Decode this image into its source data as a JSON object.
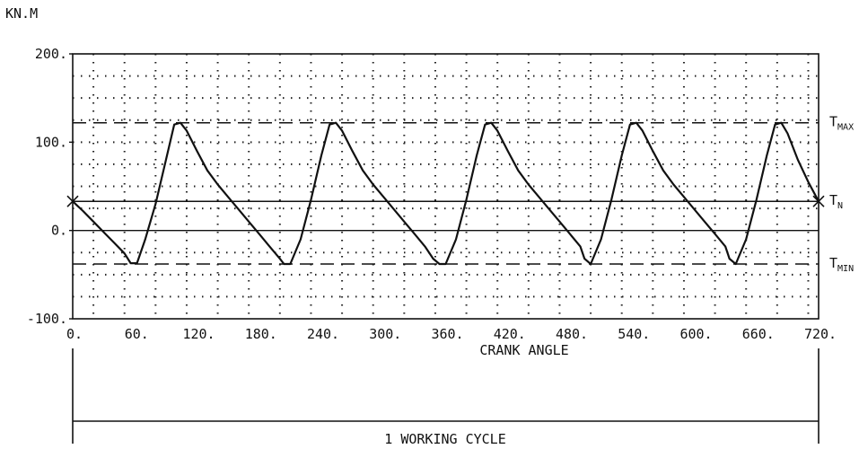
{
  "chart_data": {
    "type": "line",
    "ylabel": "KN.M",
    "xlabel": "CRANK ANGLE",
    "xlim": [
      0,
      720
    ],
    "ylim": [
      -100,
      200
    ],
    "x_ticks": [
      0,
      60,
      120,
      180,
      240,
      300,
      360,
      420,
      480,
      540,
      600,
      660,
      720
    ],
    "x_tick_labels": [
      "0.",
      "60.",
      "120.",
      "180.",
      "240.",
      "300.",
      "360.",
      "420.",
      "480.",
      "540.",
      "600.",
      "660.",
      "720."
    ],
    "y_ticks": [
      -100,
      0,
      100,
      200
    ],
    "y_tick_labels": [
      "-100.",
      "0.",
      "100.",
      "200."
    ],
    "grid": "dotted",
    "series": [
      {
        "x": [
          0,
          10,
          20,
          30,
          40,
          50,
          56,
          62,
          70,
          80,
          90,
          98,
          104,
          110,
          120,
          130,
          140,
          150,
          160,
          170,
          180,
          190,
          200,
          204,
          210,
          220,
          230,
          240,
          248,
          254,
          260,
          270,
          280,
          290,
          300,
          310,
          320,
          330,
          340,
          348,
          354,
          360,
          370,
          380,
          390,
          398,
          404,
          410,
          420,
          430,
          440,
          450,
          460,
          470,
          480,
          490,
          494,
          500,
          510,
          520,
          530,
          538,
          544,
          550,
          560,
          570,
          580,
          590,
          600,
          610,
          620,
          630,
          634,
          640,
          650,
          660,
          670,
          678,
          684,
          690,
          700,
          710,
          720
        ],
        "values": [
          33,
          22,
          10,
          -2,
          -14,
          -26,
          -37,
          -37,
          -10,
          30,
          80,
          120,
          122,
          113,
          90,
          68,
          52,
          38,
          24,
          10,
          -4,
          -18,
          -32,
          -38,
          -38,
          -10,
          35,
          85,
          120,
          122,
          113,
          90,
          68,
          52,
          38,
          24,
          10,
          -4,
          -18,
          -32,
          -38,
          -38,
          -10,
          35,
          85,
          120,
          122,
          113,
          90,
          68,
          52,
          38,
          24,
          10,
          -4,
          -18,
          -32,
          -38,
          -10,
          35,
          85,
          120,
          122,
          113,
          90,
          68,
          52,
          38,
          24,
          10,
          -4,
          -18,
          -32,
          -38,
          -10,
          35,
          85,
          120,
          122,
          110,
          80,
          55,
          33
        ]
      }
    ],
    "reference_lines": [
      {
        "name": "T",
        "sub": "MAX",
        "value": 122,
        "style": "dashed"
      },
      {
        "name": "T",
        "sub": "N",
        "value": 33,
        "style": "solid"
      },
      {
        "name": "T",
        "sub": "MIN",
        "value": -38,
        "style": "dashed"
      }
    ],
    "bracket_label": "1 WORKING CYCLE"
  }
}
